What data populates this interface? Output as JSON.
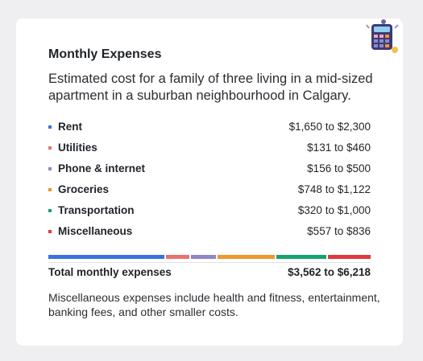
{
  "title": "Monthly Expenses",
  "description": "Estimated cost for a family of three living in a mid-sized apartment in a suburban neighbourhood in Calgary.",
  "items": [
    {
      "label": "Rent",
      "range": "$1,650 to $2,300",
      "color": "#3a74d8"
    },
    {
      "label": "Utilities",
      "range": "$131 to $460",
      "color": "#e8736c"
    },
    {
      "label": "Phone & internet",
      "range": "$156 to $500",
      "color": "#8e88c8"
    },
    {
      "label": "Groceries",
      "range": "$748 to $1,122",
      "color": "#ee962f"
    },
    {
      "label": "Transportation",
      "range": "$320 to $1,000",
      "color": "#16a26d"
    },
    {
      "label": "Miscellaneous",
      "range": "$557 to $836",
      "color": "#df3a3f"
    }
  ],
  "total": {
    "label": "Total monthly expenses",
    "range": "$3,562 to $6,218"
  },
  "note": "Miscellaneous expenses include health and fitness, entertainment, banking fees, and other smaller costs."
}
